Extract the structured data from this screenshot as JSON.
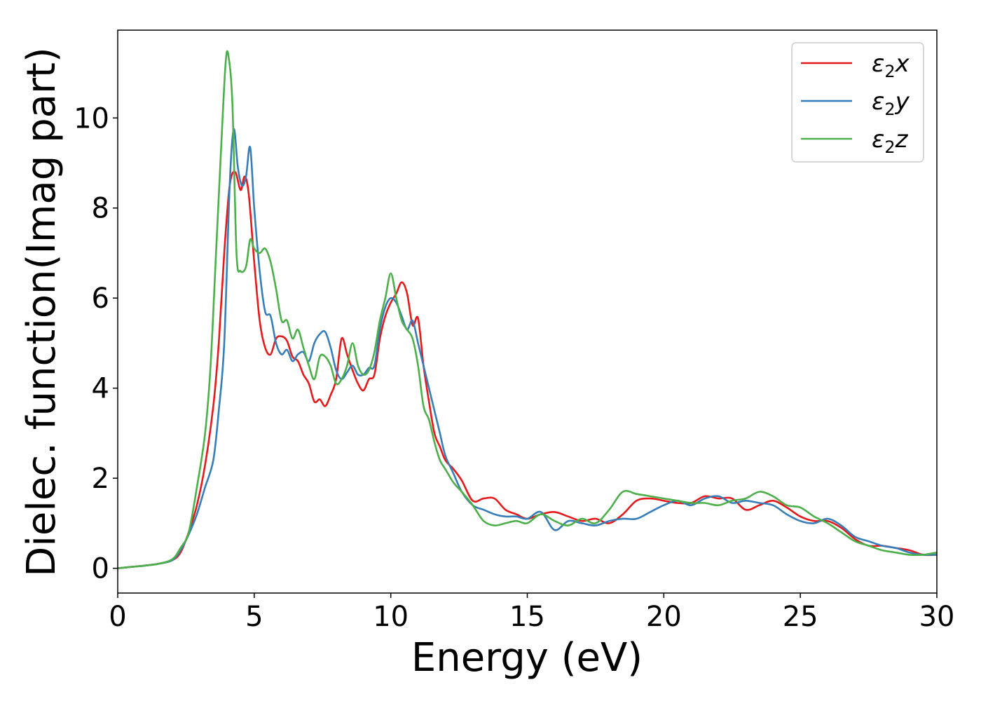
{
  "chart_data": {
    "type": "line",
    "title": "",
    "xlabel": "Energy (eV)",
    "ylabel": "Dielec. function(Imag part)",
    "xlim": [
      0,
      30
    ],
    "ylim": [
      -0.55,
      11.95
    ],
    "xticks": [
      0,
      5,
      10,
      15,
      20,
      25,
      30
    ],
    "yticks": [
      0,
      2,
      4,
      6,
      8,
      10
    ],
    "grid": false,
    "legend_position": "top-right",
    "series": [
      {
        "name": "ε₂x",
        "label_base": "ε",
        "label_sub": "2",
        "label_var": "x",
        "color": "#e41a1c",
        "x": [
          0,
          0.5,
          1,
          1.5,
          2,
          2.3,
          2.6,
          2.9,
          3.2,
          3.5,
          3.7,
          3.9,
          4.1,
          4.3,
          4.5,
          4.65,
          4.8,
          5.0,
          5.2,
          5.4,
          5.6,
          5.8,
          6.0,
          6.2,
          6.4,
          6.6,
          6.8,
          7.0,
          7.2,
          7.4,
          7.6,
          7.8,
          8.0,
          8.2,
          8.4,
          8.6,
          8.8,
          9.0,
          9.2,
          9.4,
          9.6,
          9.8,
          10.0,
          10.2,
          10.4,
          10.6,
          10.8,
          11.0,
          11.2,
          11.4,
          11.6,
          11.8,
          12.0,
          12.3,
          12.6,
          13.0,
          13.4,
          13.8,
          14.2,
          14.6,
          15.0,
          15.5,
          16.0,
          16.5,
          17.0,
          17.5,
          18.0,
          18.5,
          19.0,
          19.5,
          20.0,
          20.5,
          21.0,
          21.5,
          22.0,
          22.5,
          23.0,
          23.5,
          24.0,
          24.5,
          25.0,
          25.5,
          26.0,
          26.5,
          27.0,
          27.5,
          28.0,
          28.5,
          29.0,
          29.5,
          30.0
        ],
        "y": [
          0,
          0.03,
          0.06,
          0.1,
          0.18,
          0.35,
          0.8,
          1.4,
          2.3,
          3.6,
          5.0,
          7.0,
          8.5,
          8.8,
          8.4,
          8.7,
          8.3,
          6.8,
          5.5,
          4.9,
          4.75,
          5.1,
          5.15,
          5.05,
          4.7,
          4.6,
          4.3,
          4.1,
          3.7,
          3.75,
          3.6,
          3.85,
          4.2,
          5.1,
          4.75,
          4.4,
          4.1,
          3.95,
          4.2,
          4.3,
          5.1,
          5.6,
          5.9,
          6.1,
          6.35,
          6.1,
          5.4,
          5.55,
          4.5,
          3.7,
          3.0,
          2.7,
          2.4,
          2.2,
          1.95,
          1.5,
          1.55,
          1.55,
          1.3,
          1.2,
          1.1,
          1.2,
          1.25,
          1.15,
          1.05,
          1.1,
          1.0,
          1.2,
          1.5,
          1.55,
          1.5,
          1.45,
          1.45,
          1.6,
          1.55,
          1.55,
          1.3,
          1.4,
          1.5,
          1.35,
          1.15,
          1.05,
          1.05,
          0.9,
          0.65,
          0.5,
          0.5,
          0.45,
          0.4,
          0.3,
          0.3
        ]
      },
      {
        "name": "ε₂y",
        "label_base": "ε",
        "label_sub": "2",
        "label_var": "y",
        "color": "#377eb8",
        "x": [
          0,
          0.5,
          1,
          1.5,
          2,
          2.3,
          2.6,
          2.9,
          3.2,
          3.5,
          3.7,
          3.9,
          4.1,
          4.25,
          4.4,
          4.55,
          4.7,
          4.85,
          5.0,
          5.2,
          5.4,
          5.6,
          5.8,
          6.0,
          6.2,
          6.4,
          6.6,
          6.8,
          7.0,
          7.2,
          7.4,
          7.6,
          7.8,
          8.0,
          8.2,
          8.4,
          8.6,
          8.8,
          9.0,
          9.2,
          9.4,
          9.6,
          9.8,
          10.0,
          10.2,
          10.4,
          10.6,
          10.8,
          11.0,
          11.2,
          11.4,
          11.6,
          11.8,
          12.0,
          12.3,
          12.6,
          13.0,
          13.4,
          13.8,
          14.2,
          14.6,
          15.0,
          15.5,
          16.0,
          16.5,
          17.0,
          17.5,
          18.0,
          18.5,
          19.0,
          19.5,
          20.0,
          20.5,
          21.0,
          21.5,
          22.0,
          22.5,
          23.0,
          23.5,
          24.0,
          24.5,
          25.0,
          25.5,
          26.0,
          26.5,
          27.0,
          27.5,
          28.0,
          28.5,
          29.0,
          29.5,
          30.0
        ],
        "y": [
          0,
          0.03,
          0.06,
          0.1,
          0.18,
          0.4,
          0.75,
          1.2,
          1.8,
          2.4,
          3.5,
          5.0,
          8.5,
          9.75,
          8.9,
          8.5,
          8.7,
          9.35,
          8.0,
          6.6,
          5.7,
          5.6,
          5.0,
          4.75,
          4.85,
          4.6,
          4.75,
          4.8,
          4.6,
          5.0,
          5.2,
          5.25,
          4.9,
          4.4,
          4.2,
          4.35,
          4.5,
          4.3,
          4.3,
          4.45,
          4.5,
          5.3,
          5.8,
          6.0,
          5.9,
          5.6,
          5.3,
          5.5,
          5.0,
          4.5,
          4.0,
          3.5,
          3.0,
          2.5,
          2.1,
          1.7,
          1.4,
          1.3,
          1.2,
          1.15,
          1.15,
          1.1,
          1.25,
          0.85,
          1.05,
          1.0,
          0.95,
          1.05,
          1.1,
          1.1,
          1.25,
          1.4,
          1.5,
          1.4,
          1.55,
          1.6,
          1.45,
          1.5,
          1.45,
          1.4,
          1.2,
          1.05,
          1.0,
          1.1,
          0.95,
          0.7,
          0.6,
          0.5,
          0.45,
          0.35,
          0.3,
          0.3
        ]
      },
      {
        "name": "ε₂z",
        "label_base": "ε",
        "label_sub": "2",
        "label_var": "z",
        "color": "#4daf4a",
        "x": [
          0,
          0.5,
          1,
          1.5,
          2,
          2.3,
          2.6,
          2.9,
          3.2,
          3.4,
          3.6,
          3.8,
          3.95,
          4.05,
          4.2,
          4.35,
          4.5,
          4.7,
          4.85,
          5.0,
          5.2,
          5.4,
          5.6,
          5.8,
          6.0,
          6.2,
          6.4,
          6.6,
          6.8,
          7.0,
          7.2,
          7.4,
          7.6,
          7.8,
          8.0,
          8.2,
          8.4,
          8.6,
          8.8,
          9.0,
          9.2,
          9.4,
          9.6,
          9.8,
          10.0,
          10.2,
          10.4,
          10.6,
          10.8,
          11.0,
          11.2,
          11.4,
          11.6,
          11.8,
          12.0,
          12.3,
          12.6,
          13.0,
          13.4,
          13.8,
          14.2,
          14.6,
          15.0,
          15.5,
          16.0,
          16.5,
          17.0,
          17.5,
          18.0,
          18.5,
          19.0,
          19.5,
          20.0,
          20.5,
          21.0,
          21.5,
          22.0,
          22.5,
          23.0,
          23.5,
          24.0,
          24.5,
          25.0,
          25.5,
          26.0,
          26.5,
          27.0,
          27.5,
          28.0,
          28.5,
          29.0,
          29.5,
          30.0
        ],
        "y": [
          0,
          0.03,
          0.06,
          0.1,
          0.2,
          0.45,
          0.8,
          1.8,
          3.0,
          4.5,
          7.0,
          9.5,
          11.2,
          11.4,
          10.3,
          7.0,
          6.6,
          6.7,
          7.3,
          7.1,
          7.0,
          7.1,
          6.8,
          6.2,
          5.5,
          5.5,
          5.1,
          5.3,
          4.9,
          4.5,
          4.2,
          4.7,
          4.7,
          4.5,
          4.1,
          4.2,
          4.5,
          5.0,
          4.5,
          4.3,
          4.4,
          4.8,
          5.5,
          6.0,
          6.55,
          6.0,
          5.5,
          5.3,
          5.1,
          4.5,
          3.6,
          3.3,
          2.8,
          2.4,
          2.2,
          1.9,
          1.7,
          1.4,
          1.05,
          0.95,
          1.0,
          1.05,
          1.0,
          1.2,
          1.05,
          0.95,
          1.1,
          1.0,
          1.3,
          1.7,
          1.65,
          1.6,
          1.55,
          1.5,
          1.45,
          1.45,
          1.4,
          1.5,
          1.55,
          1.7,
          1.6,
          1.4,
          1.35,
          1.15,
          1.0,
          0.8,
          0.6,
          0.5,
          0.4,
          0.35,
          0.3,
          0.3,
          0.35
        ]
      }
    ]
  }
}
